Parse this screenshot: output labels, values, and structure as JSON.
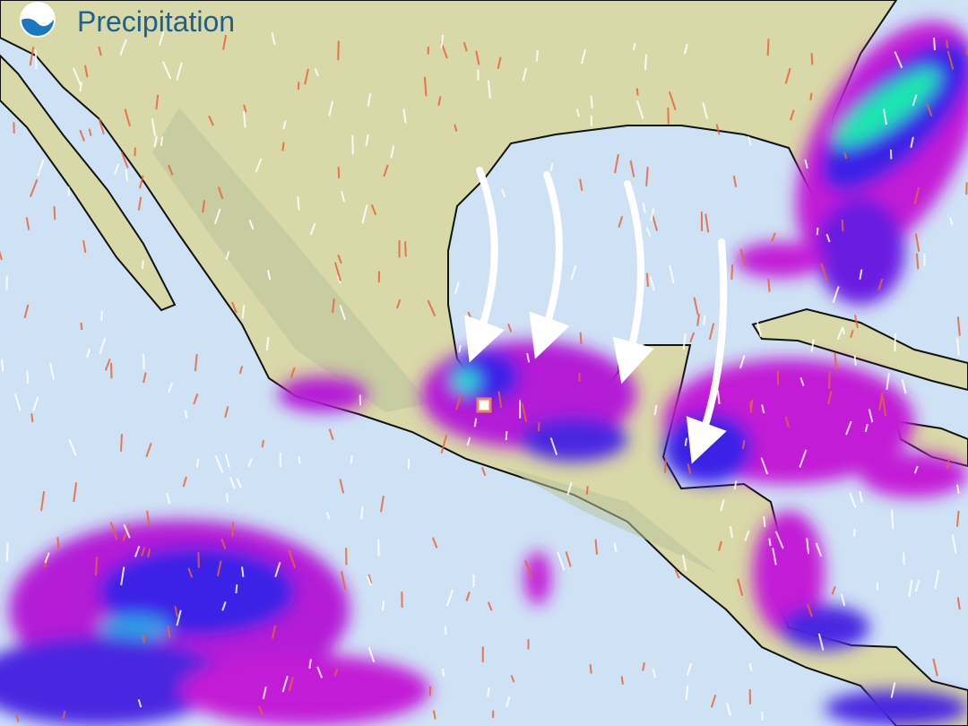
{
  "header": {
    "title": "Precipitation"
  }
}
